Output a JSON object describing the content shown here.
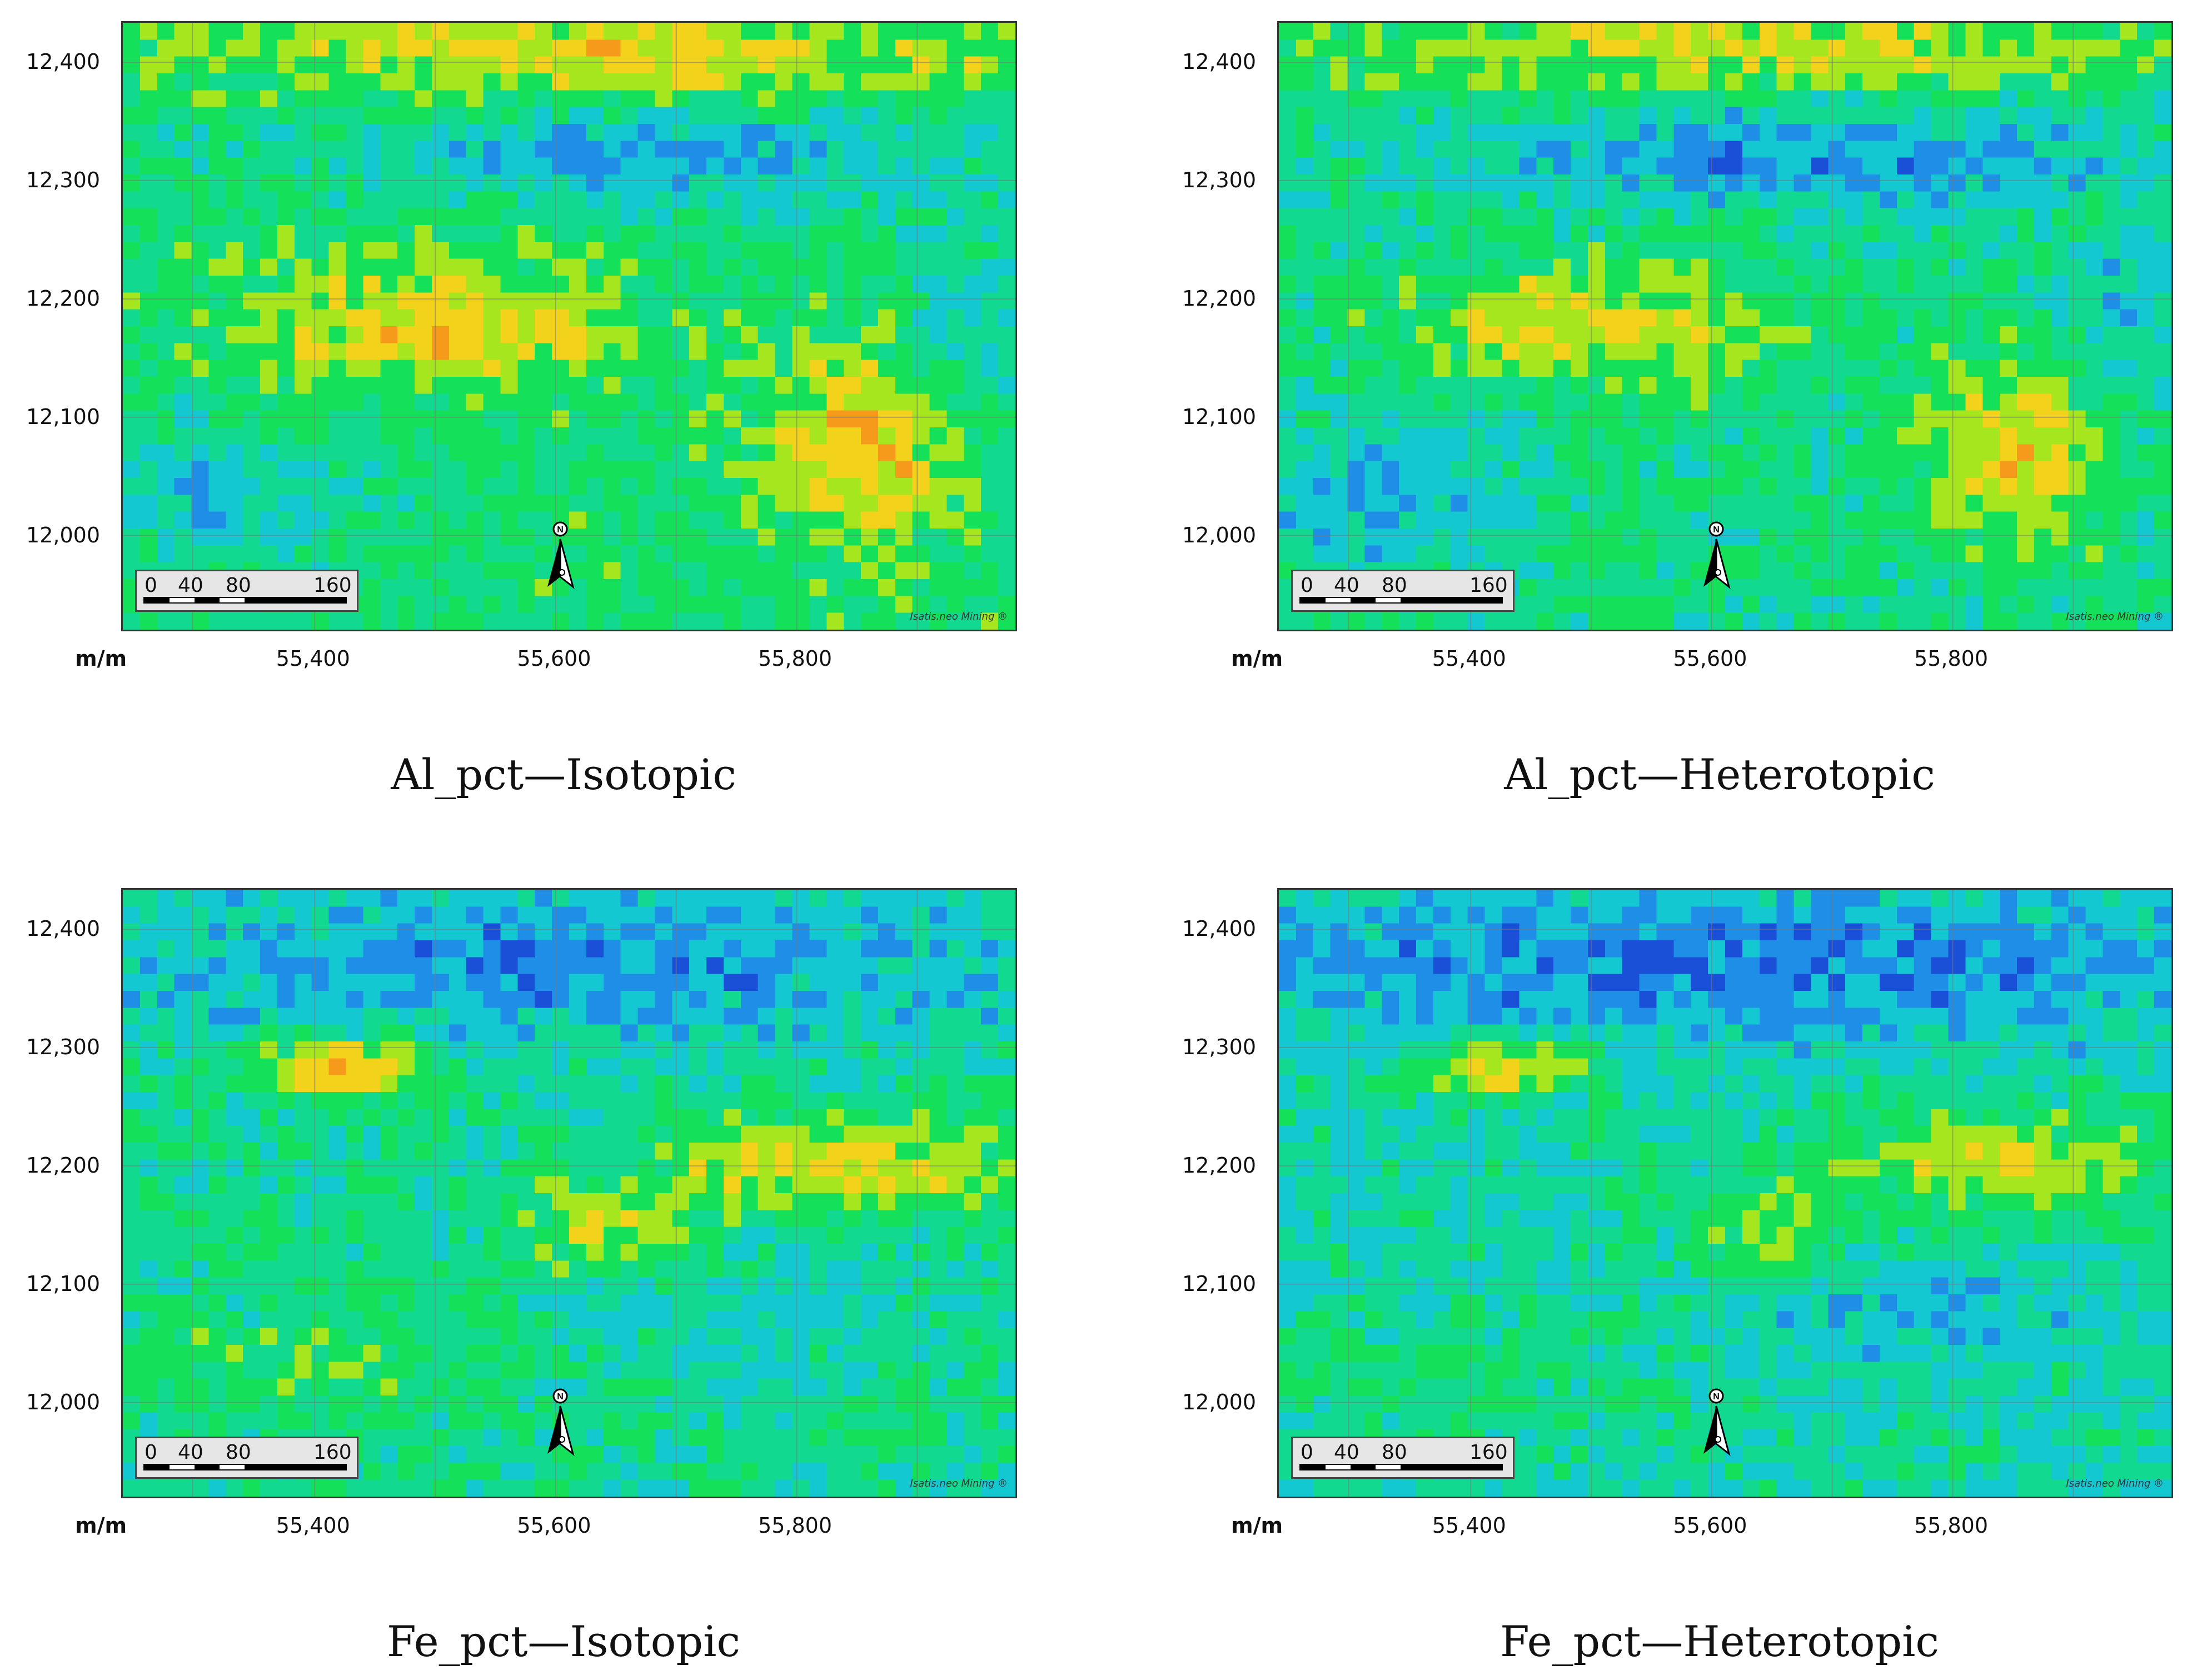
{
  "figure": {
    "panels": [
      {
        "id": "al-iso",
        "caption": "Al_pct—Isotopic",
        "variable": "Al_pct",
        "mode": "Isotopic"
      },
      {
        "id": "al-het",
        "caption": "Al_pct—Heterotopic",
        "variable": "Al_pct",
        "mode": "Heterotopic"
      },
      {
        "id": "fe-iso",
        "caption": "Fe_pct—Isotopic",
        "variable": "Fe_pct",
        "mode": "Isotopic"
      },
      {
        "id": "fe-het",
        "caption": "Fe_pct—Heterotopic",
        "variable": "Fe_pct",
        "mode": "Heterotopic"
      }
    ],
    "axes": {
      "y_ticks": [
        "12,400",
        "12,300",
        "12,200",
        "12,100",
        "12,000"
      ],
      "x_ticks": [
        "55,400",
        "55,600",
        "55,800"
      ],
      "unit_label": "m/m"
    },
    "scale_bar": {
      "labels": [
        "0",
        "40",
        "80",
        "160"
      ]
    },
    "north_arrow": {
      "label": "N"
    },
    "credit": "Isatis.neo Mining ®",
    "colormap": [
      "#1a4fd8",
      "#1f8ee6",
      "#14c8d2",
      "#12d990",
      "#15e05a",
      "#a6e61e",
      "#f2d21a",
      "#f59a1a",
      "#e8231a"
    ]
  }
}
